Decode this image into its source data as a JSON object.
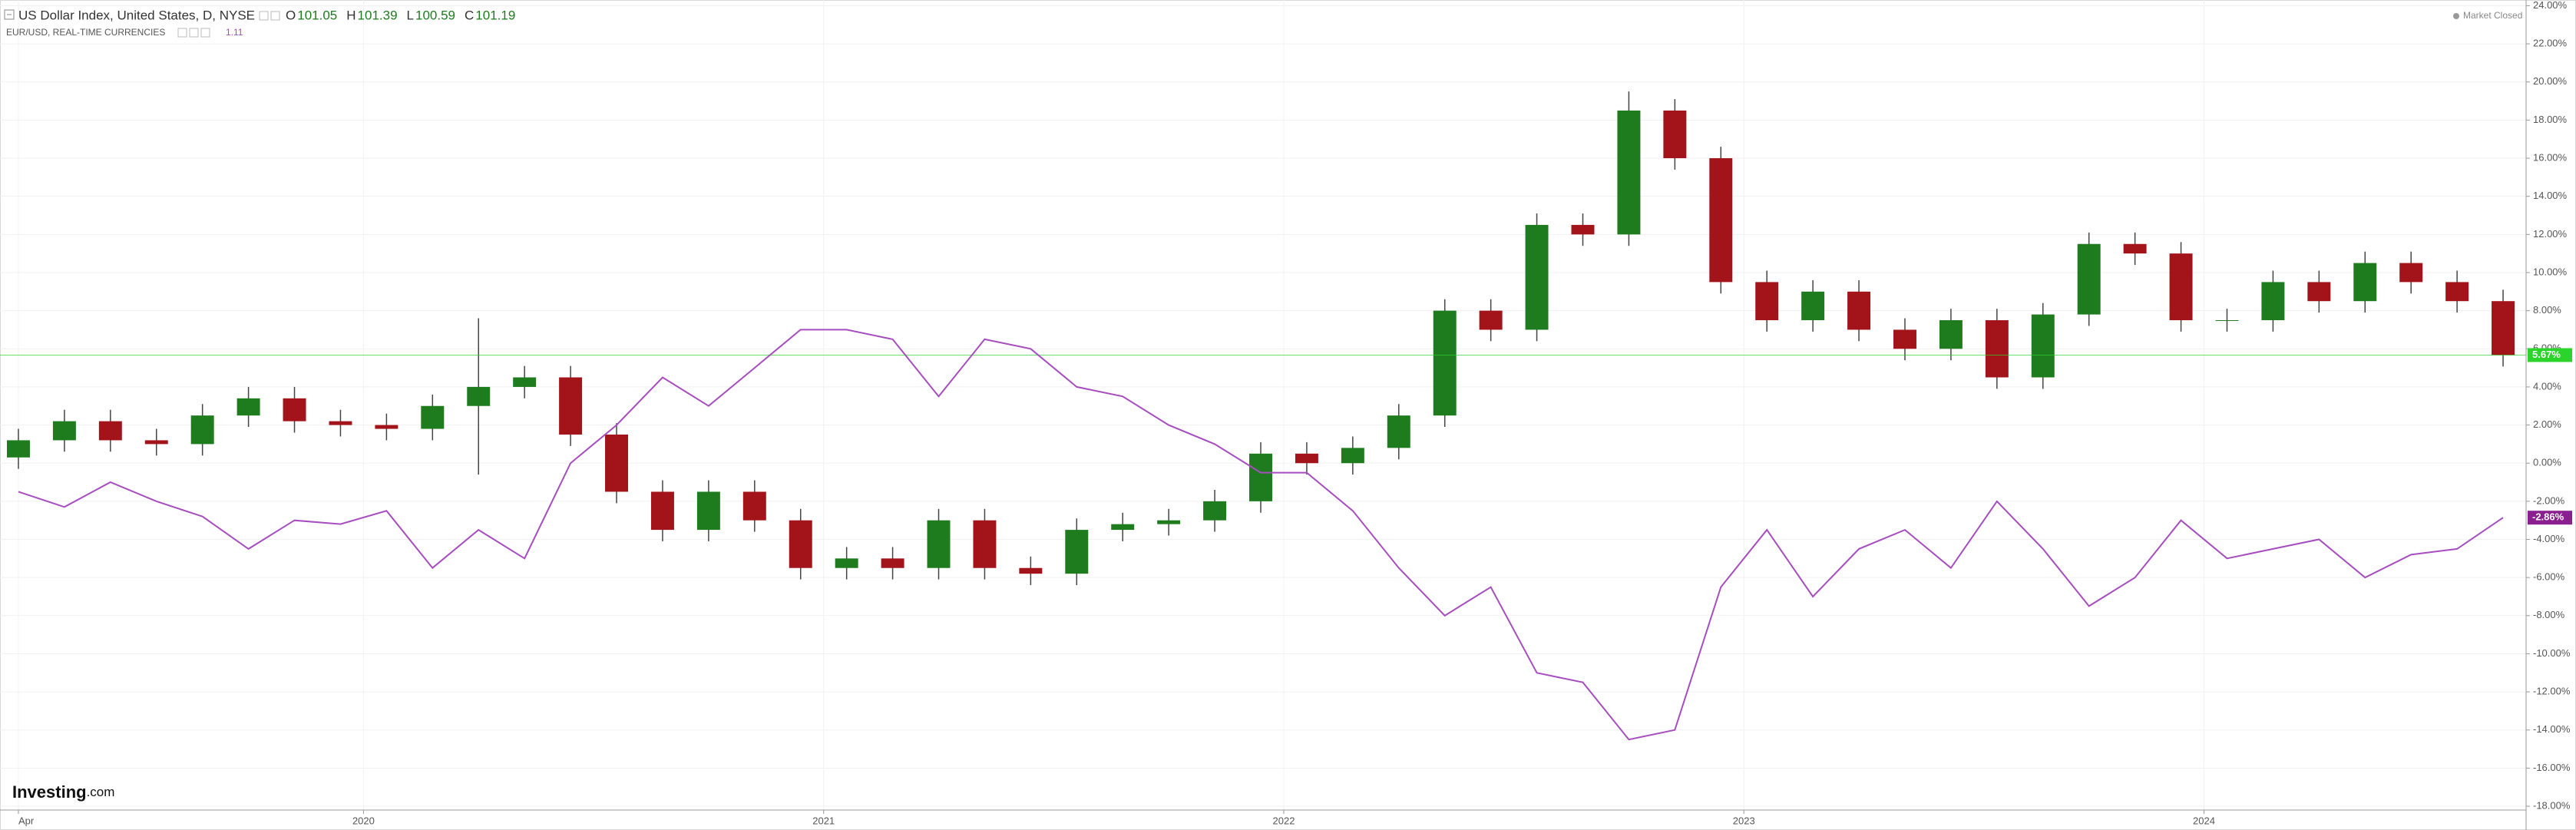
{
  "chart_data": {
    "type": "candlestick",
    "ohlc": [
      {
        "label": "O",
        "value": 101.05
      },
      {
        "label": "H",
        "value": 101.39
      },
      {
        "label": "L",
        "value": 100.59
      },
      {
        "label": "C",
        "value": 101.19
      }
    ],
    "status": "Market Closed",
    "logo_name": "Investing",
    "logo_suffix": ".com",
    "x": [
      2019.25,
      2019.35,
      2019.45,
      2019.55,
      2019.65,
      2019.75,
      2019.85,
      2019.95,
      2020.05,
      2020.15,
      2020.25,
      2020.35,
      2020.45,
      2020.55,
      2020.65,
      2020.75,
      2020.85,
      2020.95,
      2021.05,
      2021.15,
      2021.25,
      2021.35,
      2021.45,
      2021.55,
      2021.65,
      2021.75,
      2021.85,
      2021.95,
      2022.05,
      2022.15,
      2022.25,
      2022.35,
      2022.45,
      2022.55,
      2022.65,
      2022.75,
      2022.85,
      2022.95,
      2023.05,
      2023.15,
      2023.25,
      2023.35,
      2023.45,
      2023.55,
      2023.65,
      2023.75,
      2023.85,
      2023.95,
      2024.05,
      2024.15,
      2024.25,
      2024.35,
      2024.45,
      2024.55,
      2024.65
    ],
    "xlim": [
      2019.21,
      2024.7
    ],
    "xticks": [
      {
        "value": 2019.25,
        "label": "Apr"
      },
      2020,
      2021,
      2022,
      2023,
      2024
    ],
    "ylim": [
      -18.2,
      24.3
    ],
    "yticks": [
      {
        "value": -18,
        "label": "-18.00%"
      },
      {
        "value": -16,
        "label": "-16.00%"
      },
      {
        "value": -14,
        "label": "-14.00%"
      },
      {
        "value": -12,
        "label": "-12.00%"
      },
      {
        "value": -10,
        "label": "-10.00%"
      },
      {
        "value": -8,
        "label": "-8.00%"
      },
      {
        "value": -6,
        "label": "-6.00%"
      },
      {
        "value": -4,
        "label": "-4.00%"
      },
      {
        "value": -2,
        "label": "-2.00%"
      },
      {
        "value": 0,
        "label": "0.00%"
      },
      {
        "value": 2,
        "label": "2.00%"
      },
      {
        "value": 4,
        "label": "4.00%"
      },
      {
        "value": 6,
        "label": "6.00%"
      },
      {
        "value": 8,
        "label": "8.00%"
      },
      {
        "value": 10,
        "label": "10.00%"
      },
      {
        "value": 12,
        "label": "12.00%"
      },
      {
        "value": 14,
        "label": "14.00%"
      },
      {
        "value": 16,
        "label": "16.00%"
      },
      {
        "value": 18,
        "label": "18.00%"
      },
      {
        "value": 20,
        "label": "20.00%"
      },
      {
        "value": 22,
        "label": "22.00%"
      },
      {
        "value": 24,
        "label": "24.00%"
      }
    ],
    "grid": true,
    "series": [
      {
        "name": "US Dollar Index, United States, D, NYSE",
        "type": "candlestick",
        "color": "#1e7b1e",
        "down_color": "#a3141a",
        "last_color": "#2bd42b",
        "last_label": "5.67%",
        "open": [
          0.3,
          1.2,
          2.2,
          1.2,
          1.0,
          2.5,
          3.4,
          2.2,
          2.0,
          1.8,
          3.0,
          4.0,
          4.5,
          1.5,
          -1.5,
          -3.5,
          -1.5,
          -3.0,
          -5.5,
          -5.0,
          -5.5,
          -3.0,
          -5.5,
          -5.8,
          -3.5,
          -3.2,
          -3.0,
          -2.0,
          0.5,
          0.0,
          0.8,
          2.5,
          8.0,
          7.0,
          12.5,
          12.0,
          18.5,
          16.0,
          9.5,
          7.5,
          9.0,
          7.0,
          6.0,
          7.5,
          4.5,
          7.8,
          11.5,
          11.0,
          7.5,
          7.5,
          9.5,
          8.5,
          10.5,
          9.5,
          8.5
        ],
        "high": [
          1.8,
          2.8,
          2.8,
          1.8,
          3.1,
          4.0,
          4.0,
          2.8,
          2.6,
          3.6,
          7.6,
          5.1,
          5.1,
          2.1,
          -0.9,
          -0.9,
          -0.9,
          -2.4,
          -4.4,
          -4.4,
          -2.4,
          -2.4,
          -4.9,
          -2.9,
          -2.6,
          -2.4,
          -1.4,
          1.1,
          1.1,
          1.4,
          3.1,
          8.6,
          8.6,
          13.1,
          13.1,
          19.5,
          19.1,
          16.6,
          10.1,
          9.6,
          9.6,
          7.6,
          8.1,
          8.1,
          8.4,
          12.1,
          12.1,
          11.6,
          8.1,
          10.1,
          10.1,
          11.1,
          11.1,
          10.1,
          9.1
        ],
        "low": [
          -0.3,
          0.6,
          0.6,
          0.4,
          0.4,
          1.9,
          1.6,
          1.4,
          1.2,
          1.2,
          -0.6,
          3.4,
          0.9,
          -2.1,
          -4.1,
          -4.1,
          -3.6,
          -6.1,
          -6.1,
          -6.1,
          -6.1,
          -6.1,
          -6.4,
          -6.4,
          -4.1,
          -3.8,
          -3.6,
          -2.6,
          -0.6,
          -0.6,
          0.2,
          1.9,
          6.4,
          6.4,
          11.4,
          11.4,
          15.4,
          8.9,
          6.9,
          6.9,
          6.4,
          5.4,
          5.4,
          3.9,
          3.9,
          7.2,
          10.4,
          6.9,
          6.9,
          6.9,
          7.9,
          7.9,
          8.9,
          7.9,
          5.07
        ],
        "close": [
          1.2,
          2.2,
          1.2,
          1.0,
          2.5,
          3.4,
          2.2,
          2.0,
          1.8,
          3.0,
          4.0,
          4.5,
          1.5,
          -1.5,
          -3.5,
          -1.5,
          -3.0,
          -5.5,
          -5.0,
          -5.5,
          -3.0,
          -5.5,
          -5.8,
          -3.5,
          -3.2,
          -3.0,
          -2.0,
          0.5,
          0.0,
          0.8,
          2.5,
          8.0,
          7.0,
          12.5,
          12.0,
          18.5,
          16.0,
          9.5,
          7.5,
          9.0,
          7.0,
          6.0,
          7.5,
          4.5,
          7.8,
          11.5,
          11.0,
          7.5,
          7.5,
          9.5,
          8.5,
          10.5,
          9.5,
          8.5,
          5.67
        ]
      },
      {
        "name": "EUR/USD, REAL-TIME CURRENCIES",
        "type": "line",
        "color": "#a64dbf",
        "last_color": "#8a1f8f",
        "quote": 1.11,
        "last_label": "-2.86%",
        "values": [
          -1.5,
          -2.3,
          -1.0,
          -2.0,
          -2.8,
          -4.5,
          -3.0,
          -3.2,
          -2.5,
          -5.5,
          -3.5,
          -5.0,
          0.0,
          2.0,
          4.5,
          3.0,
          5.0,
          7.0,
          7.0,
          6.5,
          3.5,
          6.5,
          6.0,
          4.0,
          3.5,
          2.0,
          1.0,
          -0.5,
          -0.5,
          -2.5,
          -5.5,
          -8.0,
          -6.5,
          -11.0,
          -11.5,
          -14.5,
          -14.0,
          -6.5,
          -3.5,
          -7.0,
          -4.5,
          -3.5,
          -5.5,
          -2.0,
          -4.5,
          -7.5,
          -6.0,
          -3.0,
          -5.0,
          -4.5,
          -4.0,
          -6.0,
          -4.8,
          -4.5,
          -2.86
        ]
      }
    ]
  }
}
